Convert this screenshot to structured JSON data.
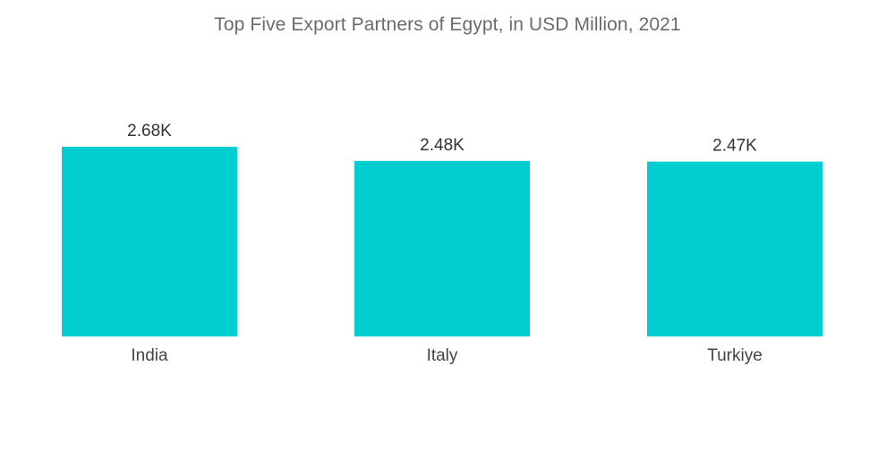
{
  "chart_data": {
    "type": "bar",
    "title": "Top Five Export Partners of Egypt, in USD Million, 2021",
    "categories": [
      "India",
      "Italy",
      "Turkiye"
    ],
    "values": [
      2680,
      2480,
      2470
    ],
    "value_labels": [
      "2.68K",
      "2.48K",
      "2.47K"
    ],
    "xlabel": "",
    "ylabel": "",
    "ylim": [
      0,
      2680
    ],
    "grid": false,
    "legend": "none",
    "bar_color": "#00CED1"
  }
}
